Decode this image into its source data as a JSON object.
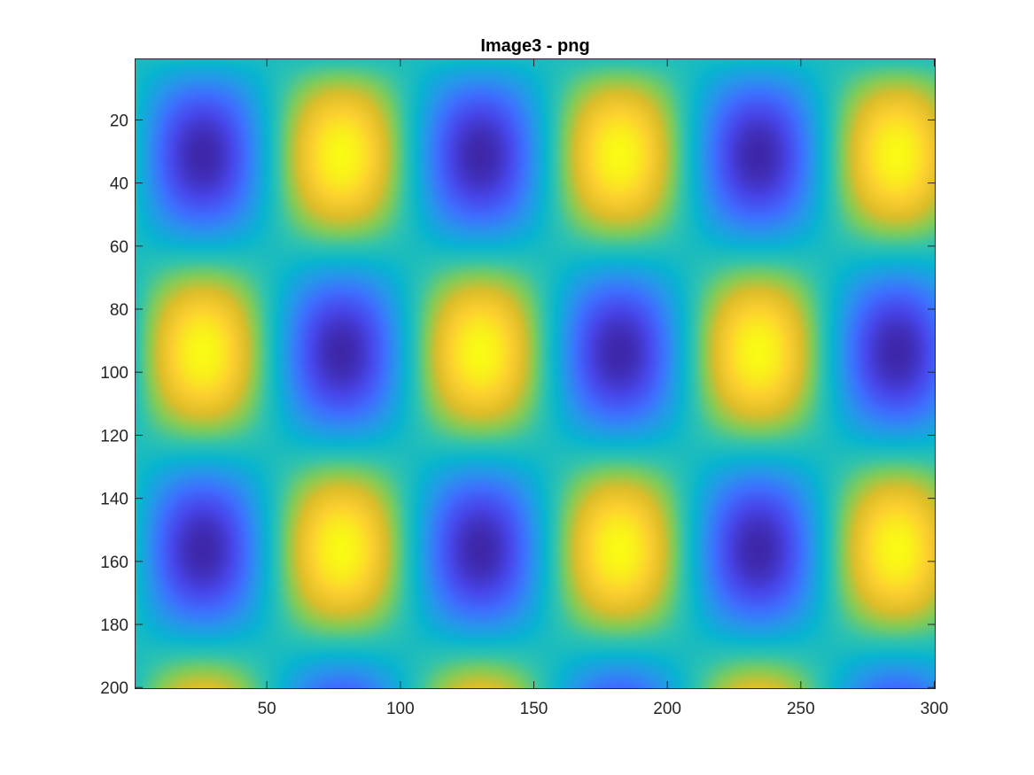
{
  "chart_data": {
    "type": "heatmap",
    "title": "Image3 - png",
    "xlabel": "",
    "ylabel": "",
    "colormap": "parula",
    "image_size": {
      "rows": 200,
      "cols": 300
    },
    "xlim": [
      0.5,
      300.5
    ],
    "ylim": [
      0.5,
      200.5
    ],
    "y_direction": "reverse",
    "x_ticks": [
      50,
      100,
      150,
      200,
      250,
      300
    ],
    "x_tick_labels": [
      "50",
      "100",
      "150",
      "200",
      "250",
      "300"
    ],
    "y_ticks": [
      20,
      40,
      60,
      80,
      100,
      120,
      140,
      160,
      180,
      200
    ],
    "y_tick_labels": [
      "20",
      "40",
      "60",
      "80",
      "100",
      "120",
      "140",
      "160",
      "180",
      "200"
    ],
    "pattern": {
      "description": "product of sinusoids: sin(2*pi*x/period_x) * sin(2*pi*y/period_y)",
      "period_x": 104,
      "period_y": 125,
      "sign": -1,
      "value_range": [
        -1,
        1
      ]
    },
    "grid": false,
    "legend": "none",
    "colorbar": false
  }
}
